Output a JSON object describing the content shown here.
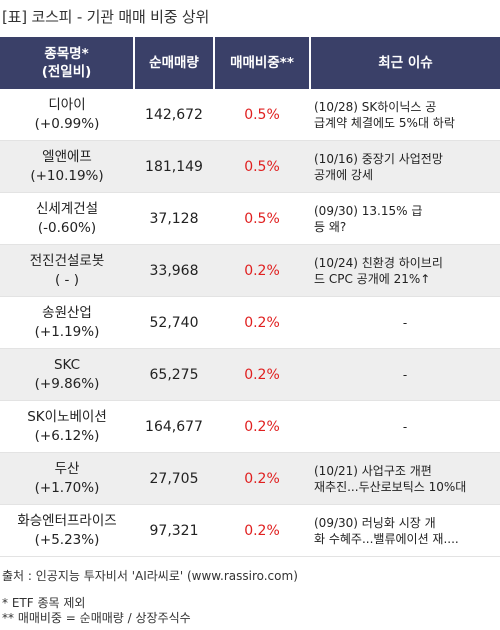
{
  "title": "[표] 코스피 - 기관 매매 비중 상위",
  "headers": {
    "name_line1": "종목명*",
    "name_line2": "(전일비)",
    "qty": "순매매량",
    "ratio": "매매비중**",
    "issue": "최근 이슈"
  },
  "rows": [
    {
      "name": "디아이",
      "change": "(+0.99%)",
      "qty": "142,672",
      "ratio": "0.5%",
      "issue1": "(10/28) SK하이닉스 공",
      "issue2": "급계약 체결에도 5%대 하락"
    },
    {
      "name": "엘앤에프",
      "change": "(+10.19%)",
      "qty": "181,149",
      "ratio": "0.5%",
      "issue1": "(10/16) 중장기 사업전망",
      "issue2": " 공개에 강세"
    },
    {
      "name": "신세계건설",
      "change": "(-0.60%)",
      "qty": "37,128",
      "ratio": "0.5%",
      "issue1": "(09/30) 13.15% 급",
      "issue2": "등 왜?"
    },
    {
      "name": "전진건설로봇",
      "change": "( - )",
      "qty": "33,968",
      "ratio": "0.2%",
      "issue1": "(10/24) 친환경 하이브리",
      "issue2": "드 CPC 공개에 21%↑"
    },
    {
      "name": "송원산업",
      "change": "(+1.19%)",
      "qty": "52,740",
      "ratio": "0.2%",
      "issue1": "-",
      "issue2": ""
    },
    {
      "name": "SKC",
      "change": "(+9.86%)",
      "qty": "65,275",
      "ratio": "0.2%",
      "issue1": "-",
      "issue2": ""
    },
    {
      "name": "SK이노베이션",
      "change": "(+6.12%)",
      "qty": "164,677",
      "ratio": "0.2%",
      "issue1": "-",
      "issue2": ""
    },
    {
      "name": "두산",
      "change": "(+1.70%)",
      "qty": "27,705",
      "ratio": "0.2%",
      "issue1": "(10/21) 사업구조 개편",
      "issue2": "재추진...두산로보틱스 10%대"
    },
    {
      "name": "화승엔터프라이즈",
      "change": "(+5.23%)",
      "qty": "97,321",
      "ratio": "0.2%",
      "issue1": "(09/30) 러닝화 시장 개",
      "issue2": "화 수혜주...밸류에이션 재...."
    }
  ],
  "source": "출처 : 인공지능 투자비서 'AI라씨로' (www.rassiro.com)",
  "note1": "* ETF 종목 제외",
  "note2": "** 매매비중 = 순매매량 / 상장주식수"
}
